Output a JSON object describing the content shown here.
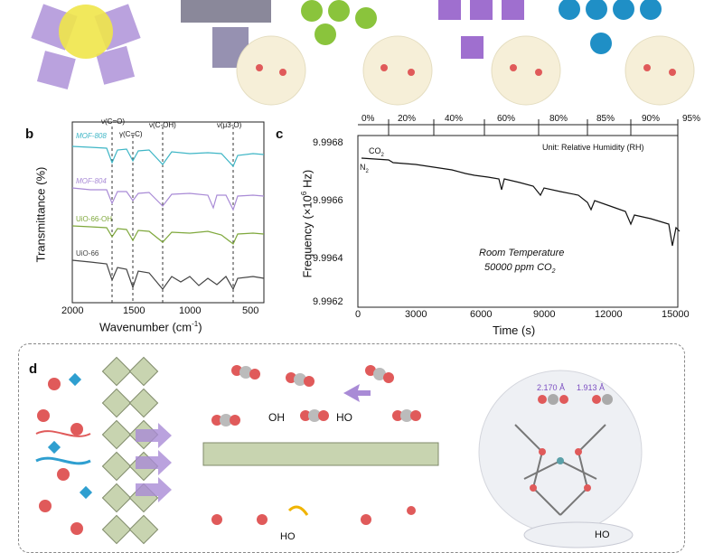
{
  "panel_b": {
    "letter": "b",
    "y_axis_title": "Transmittance (%)",
    "x_axis_title": "Wavenumber (cm",
    "x_axis_title_sup": "-1",
    "x_axis_title_end": ")",
    "x_ticks": [
      "2000",
      "1500",
      "1000",
      "500"
    ],
    "band_labels": [
      "ν(C=O)",
      "γ(C=C)",
      "ν(C-OH)",
      "ν(μ3-O)"
    ],
    "series": [
      {
        "name": "MOF-808",
        "color": "#3fb6c6"
      },
      {
        "name": "MOF-804",
        "color": "#a98bd6"
      },
      {
        "name": "UiO-66-OH",
        "color": "#7fa83c"
      },
      {
        "name": "UiO-66",
        "color": "#444444"
      }
    ]
  },
  "panel_c": {
    "letter": "c",
    "y_axis_title": "Frequency (×10",
    "y_axis_title_sup": "6",
    "y_axis_title_end": " Hz)",
    "x_axis_title": "Time (s)",
    "x_ticks": [
      "0",
      "3000",
      "6000",
      "9000",
      "12000",
      "15000"
    ],
    "y_ticks": [
      "9.9968",
      "9.9966",
      "9.9964",
      "9.9962"
    ],
    "rh_levels": [
      "0%",
      "20%",
      "40%",
      "60%",
      "80%",
      "85%",
      "90%",
      "95%"
    ],
    "unit_note": "Unit: Relative Humidity (RH)",
    "n2_label": "N",
    "n2_sub": "2",
    "co2_label": "CO",
    "co2_sub": "2",
    "condition_line1": "Room Temperature",
    "condition_line2": "50000 ppm CO",
    "condition_line2_sub": "2",
    "line_color": "#111111"
  },
  "panel_d": {
    "letter": "d",
    "left_labels": [
      "OH",
      "HO"
    ],
    "bottom_label": "HO",
    "bond_lengths": [
      "2.170 Å",
      "1.913 Å"
    ],
    "bottom_right_label": "HO"
  },
  "colors": {
    "mof808": "#3fb6c6",
    "mof804": "#a98bd6",
    "uio66oh": "#7fa83c",
    "uio66": "#444444",
    "co2_red": "#e05a5a",
    "water_blue": "#2f9fd0",
    "lattice_green": "#c8d4b0",
    "arrow_purple": "#a98bd6"
  }
}
